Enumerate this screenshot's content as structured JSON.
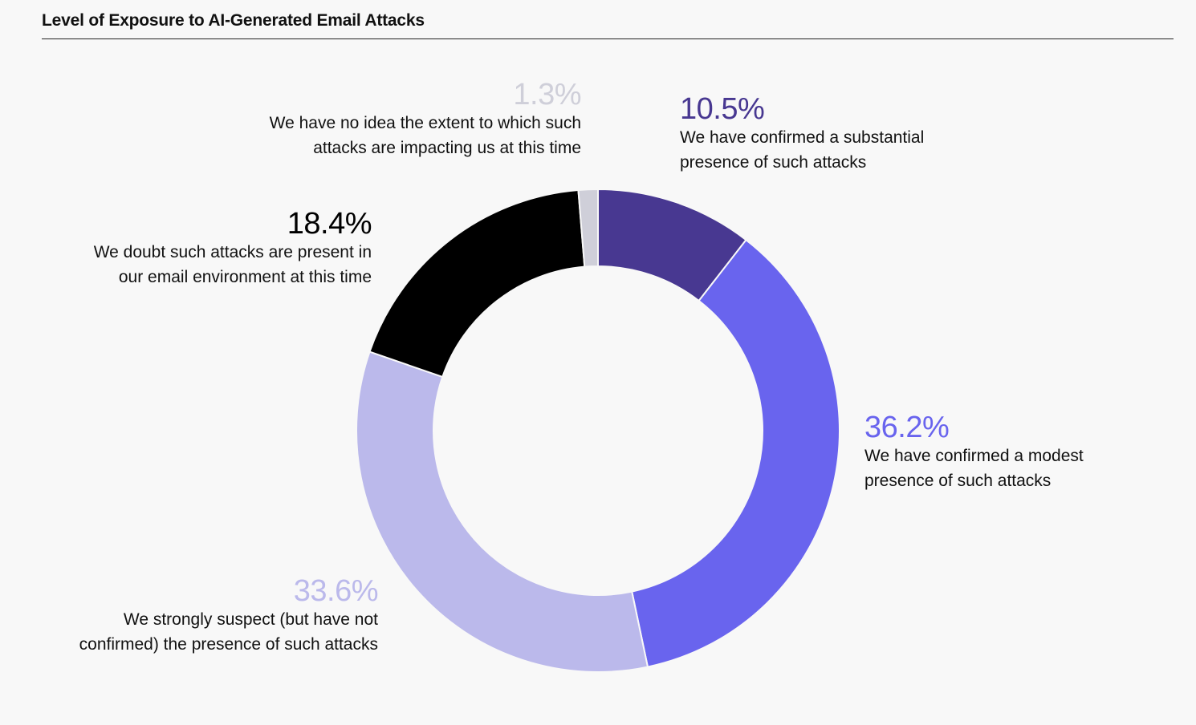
{
  "title": "Level of Exposure to AI-Generated Email Attacks",
  "chart_data": {
    "type": "pie",
    "donut": true,
    "categories": [
      "We have confirmed a substantial presence of such attacks",
      "We have confirmed a modest presence of such attacks",
      "We strongly suspect (but have not confirmed) the presence of such attacks",
      "We doubt such attacks are present in our email environment at this time",
      "We have no idea the extent to which such attacks are impacting us at this time"
    ],
    "values": [
      10.5,
      36.2,
      33.6,
      18.4,
      1.3
    ],
    "value_labels": [
      "10.5%",
      "36.2%",
      "33.6%",
      "18.4%",
      "1.3%"
    ],
    "colors": [
      "#483891",
      "#6964ee",
      "#bbb9eb",
      "#000000",
      "#cfcfd9"
    ]
  },
  "labels": [
    {
      "pct": "10.5%",
      "line1": "We have confirmed a substantial",
      "line2": "presence of such attacks"
    },
    {
      "pct": "36.2%",
      "line1": "We have confirmed a modest",
      "line2": "presence of such attacks"
    },
    {
      "pct": "33.6%",
      "line1": "We strongly suspect (but have not",
      "line2": "confirmed) the presence of such attacks"
    },
    {
      "pct": "18.4%",
      "line1": "We doubt such attacks are present in",
      "line2": "our email environment at this time"
    },
    {
      "pct": "1.3%",
      "line1": "We have no idea the extent to which such",
      "line2": "attacks are impacting us at this time"
    }
  ]
}
